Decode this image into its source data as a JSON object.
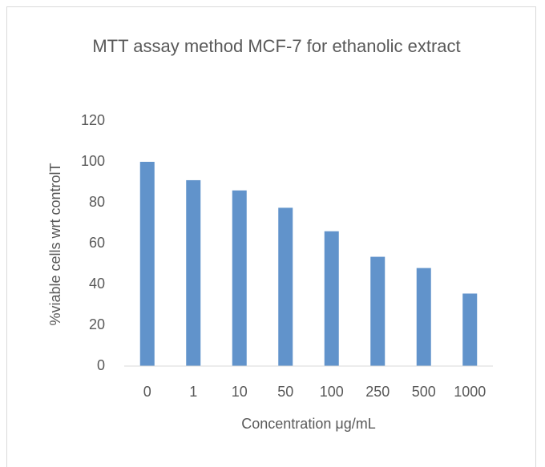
{
  "chart_data": {
    "type": "bar",
    "title": "MTT assay method MCF-7 for ethanolic extract",
    "x_label": "Concentration μg/mL",
    "y_label": "%viable cells wrt controlT",
    "categories": [
      "0",
      "1",
      "10",
      "50",
      "100",
      "250",
      "500",
      "1000"
    ],
    "values": [
      100,
      91,
      86,
      77.5,
      66,
      53.5,
      48,
      35.5
    ],
    "color": "#6193cb",
    "ylim": [
      0,
      120
    ],
    "yticks": [
      0,
      20,
      40,
      60,
      80,
      100,
      120
    ],
    "grid": false
  }
}
